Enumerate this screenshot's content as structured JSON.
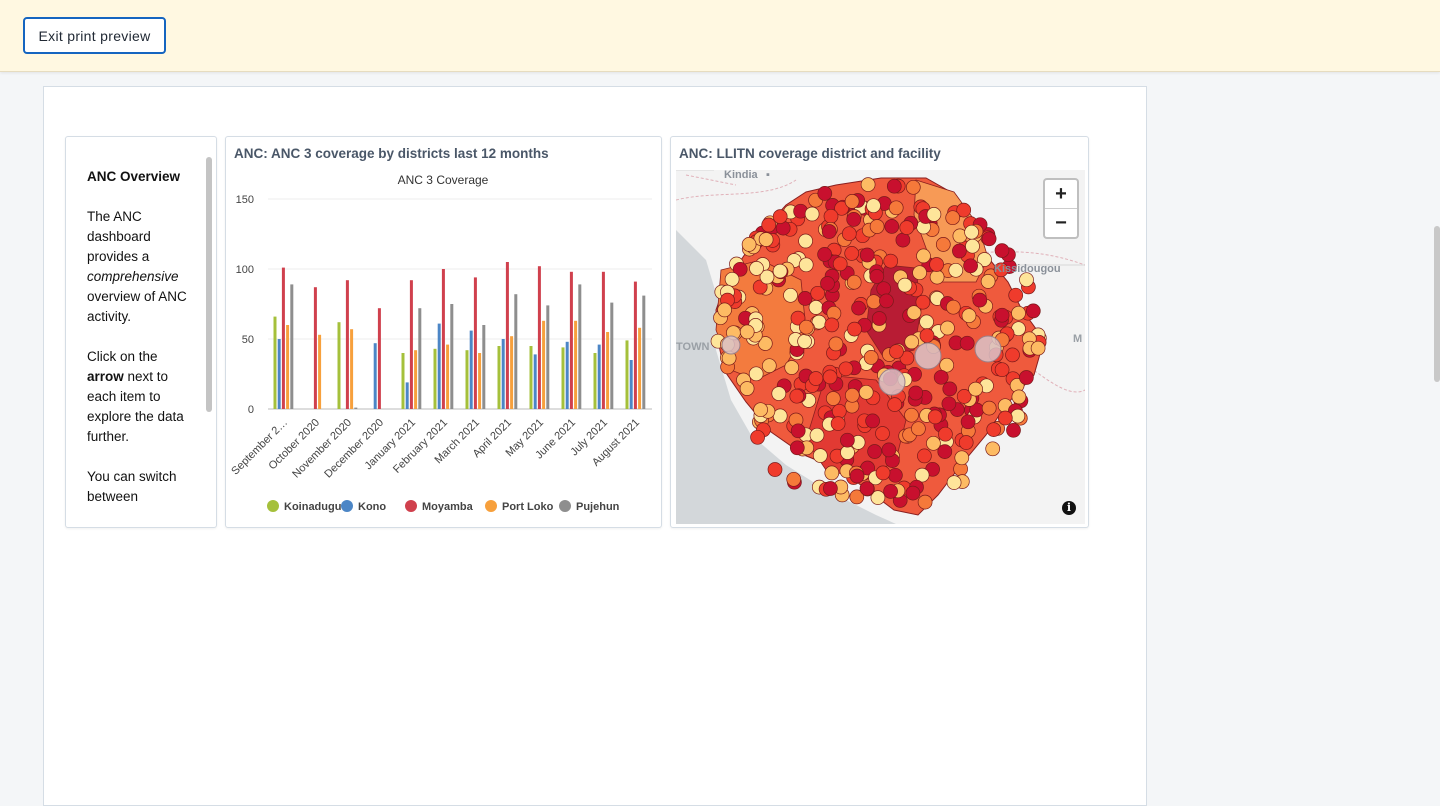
{
  "topbar": {
    "exit_label": "Exit print preview"
  },
  "text_item": {
    "heading": "ANC Overview",
    "p1_a": "The ANC dashboard provides a ",
    "p1_em": "comprehensive",
    "p1_b": " overview of ANC activity.",
    "p2_a": "Click on the ",
    "p2_strong": "arrow",
    "p2_b": " next to each item to explore the data further.",
    "p3": "You can switch between"
  },
  "chart_item": {
    "title": "ANC: ANC 3 coverage by districts last 12 months"
  },
  "map_item": {
    "title": "ANC: LLITN coverage district and facility",
    "labels": {
      "kindia": "Kindia",
      "kissidougou": "Kissidougou",
      "town": "TOWN",
      "m": "M"
    },
    "zoom_in": "+",
    "zoom_out": "−",
    "info": "i",
    "colors": {
      "dark": "#c8102e",
      "mid": "#ef3b2c",
      "orange": "#f5793a",
      "light": "#fdbb63",
      "pale": "#fee59a",
      "sea": "#dfe3e6",
      "land": "#f2f2f2"
    }
  },
  "chart_data": {
    "type": "bar",
    "title": "ANC 3 Coverage",
    "xlabel": "",
    "ylabel": "",
    "ylim": [
      0,
      150
    ],
    "yticks": [
      "0",
      "50",
      "100",
      "150"
    ],
    "categories": [
      "September 2…",
      "October 2020",
      "November 2020",
      "December 2020",
      "January 2021",
      "February 2021",
      "March 2021",
      "April 2021",
      "May 2021",
      "June 2021",
      "July 2021",
      "August 2021"
    ],
    "series": [
      {
        "name": "Koinadugu",
        "color": "#a5c03b",
        "values": [
          66,
          0,
          62,
          0,
          40,
          43,
          42,
          45,
          45,
          44,
          40,
          49
        ]
      },
      {
        "name": "Kono",
        "color": "#4c86c6",
        "values": [
          50,
          0,
          0,
          47,
          19,
          61,
          56,
          50,
          39,
          48,
          46,
          35
        ]
      },
      {
        "name": "Moyamba",
        "color": "#d0404d",
        "values": [
          101,
          87,
          92,
          72,
          92,
          100,
          94,
          105,
          102,
          98,
          98,
          91
        ]
      },
      {
        "name": "Port Loko",
        "color": "#f7a03c",
        "values": [
          60,
          53,
          57,
          0,
          42,
          46,
          40,
          52,
          63,
          63,
          55,
          58
        ]
      },
      {
        "name": "Pujehun",
        "color": "#8e8e8e",
        "values": [
          89,
          0,
          1,
          0,
          72,
          75,
          60,
          82,
          74,
          89,
          76,
          81
        ]
      }
    ],
    "legend_position": "bottom",
    "grid": true
  }
}
